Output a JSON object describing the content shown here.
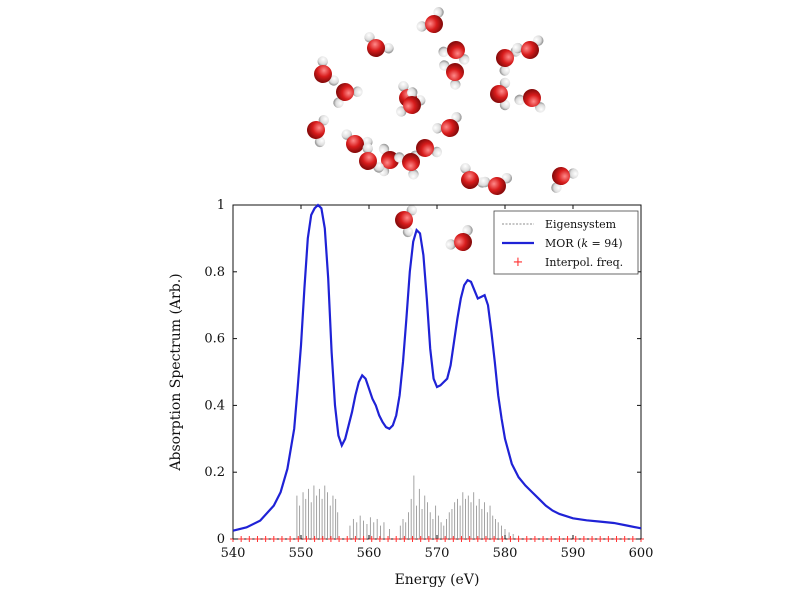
{
  "chart_data": {
    "type": "line",
    "title": "",
    "xlabel": "Energy (eV)",
    "ylabel": "Absorption Spectrum (Arb.)",
    "xlim": [
      540,
      600
    ],
    "ylim": [
      0,
      1
    ],
    "xticks": [
      "540",
      "550",
      "560",
      "570",
      "580",
      "590",
      "600"
    ],
    "yticks": [
      "0",
      "0.2",
      "0.4",
      "0.6",
      "0.8",
      "1"
    ],
    "grid": false,
    "legend_position": "top-right",
    "legend": {
      "eigensystem": "Eigensystem",
      "mor_prefix": "MOR (",
      "mor_k": "k",
      "mor_suffix": " = 94)",
      "interpol": "Interpol. freq."
    },
    "colors": {
      "mor": "#1f22d6",
      "eigensystem": "#8c8c8c",
      "interpol": "#ff3030",
      "oxygen": "#d81c1c",
      "hydrogen": "#e6e6e6"
    },
    "series": [
      {
        "name": "MOR (k = 94)",
        "style": "line",
        "x": [
          540,
          542,
          544,
          546,
          547,
          548,
          549,
          549.5,
          550,
          550.5,
          551,
          551.5,
          552,
          552.5,
          553,
          553.5,
          554,
          554.5,
          555,
          555.5,
          556,
          556.5,
          557,
          557.5,
          558,
          558.5,
          559,
          559.5,
          560,
          560.5,
          561,
          561.5,
          562,
          562.5,
          563,
          563.5,
          564,
          564.5,
          565,
          565.5,
          566,
          566.5,
          567,
          567.5,
          568,
          568.5,
          569,
          569.5,
          570,
          570.5,
          571,
          571.5,
          572,
          572.5,
          573,
          573.5,
          574,
          574.5,
          575,
          575.5,
          576,
          576.5,
          577,
          577.5,
          578,
          578.5,
          579,
          579.5,
          580,
          581,
          582,
          583,
          584,
          585,
          586,
          587,
          588,
          590,
          592,
          594,
          596,
          598,
          600
        ],
        "values": [
          0.025,
          0.035,
          0.055,
          0.1,
          0.14,
          0.21,
          0.33,
          0.45,
          0.58,
          0.75,
          0.9,
          0.97,
          0.99,
          1.0,
          0.99,
          0.93,
          0.78,
          0.56,
          0.4,
          0.31,
          0.28,
          0.3,
          0.34,
          0.38,
          0.43,
          0.47,
          0.49,
          0.48,
          0.45,
          0.42,
          0.4,
          0.37,
          0.35,
          0.335,
          0.33,
          0.34,
          0.37,
          0.43,
          0.53,
          0.66,
          0.8,
          0.89,
          0.925,
          0.915,
          0.85,
          0.72,
          0.57,
          0.48,
          0.455,
          0.46,
          0.47,
          0.48,
          0.52,
          0.59,
          0.66,
          0.72,
          0.76,
          0.775,
          0.77,
          0.745,
          0.72,
          0.725,
          0.73,
          0.7,
          0.62,
          0.53,
          0.43,
          0.36,
          0.3,
          0.225,
          0.185,
          0.16,
          0.14,
          0.12,
          0.1,
          0.085,
          0.075,
          0.062,
          0.056,
          0.052,
          0.048,
          0.04,
          0.032
        ]
      }
    ],
    "eigensystem_sticks": {
      "name": "Eigensystem",
      "x": [
        549.4,
        549.8,
        550.3,
        550.7,
        551.1,
        551.5,
        551.9,
        552.3,
        552.7,
        553.1,
        553.5,
        553.9,
        554.3,
        554.7,
        555.1,
        555.4,
        557.2,
        557.7,
        558.2,
        558.7,
        559.2,
        559.7,
        560.2,
        560.7,
        561.2,
        561.7,
        562.2,
        563.0,
        564.6,
        565.0,
        565.4,
        565.8,
        566.2,
        566.6,
        567.0,
        567.4,
        567.8,
        568.2,
        568.6,
        569.0,
        569.4,
        569.8,
        570.2,
        570.6,
        571.0,
        571.4,
        571.8,
        572.2,
        572.6,
        573.0,
        573.4,
        573.8,
        574.2,
        574.6,
        575.0,
        575.4,
        575.8,
        576.2,
        576.6,
        577.0,
        577.4,
        577.8,
        578.2,
        578.6,
        579.0,
        579.5,
        580.0,
        580.6,
        581.2,
        582.0
      ],
      "values": [
        0.13,
        0.1,
        0.14,
        0.12,
        0.15,
        0.11,
        0.16,
        0.13,
        0.15,
        0.12,
        0.16,
        0.14,
        0.1,
        0.13,
        0.12,
        0.08,
        0.04,
        0.06,
        0.05,
        0.07,
        0.055,
        0.045,
        0.065,
        0.05,
        0.06,
        0.04,
        0.05,
        0.03,
        0.04,
        0.06,
        0.05,
        0.08,
        0.12,
        0.19,
        0.1,
        0.15,
        0.09,
        0.13,
        0.11,
        0.08,
        0.06,
        0.1,
        0.07,
        0.05,
        0.04,
        0.06,
        0.08,
        0.09,
        0.11,
        0.12,
        0.1,
        0.14,
        0.12,
        0.13,
        0.11,
        0.14,
        0.1,
        0.12,
        0.09,
        0.11,
        0.08,
        0.1,
        0.07,
        0.06,
        0.05,
        0.04,
        0.03,
        0.02,
        0.015,
        0.01
      ]
    },
    "interpol_points": {
      "name": "Interpol. freq.",
      "x": [
        540,
        541.2,
        542.4,
        543.6,
        544.8,
        546,
        547.2,
        548.4,
        549.6,
        550.8,
        552,
        553.2,
        554.4,
        555.6,
        556.8,
        558,
        559.2,
        560.4,
        561.6,
        562.8,
        564,
        565.2,
        566.4,
        567.6,
        568.8,
        570,
        571.2,
        572.4,
        573.6,
        574.8,
        576,
        577.2,
        578.4,
        579.6,
        580.8,
        582,
        583.2,
        584.4,
        585.6,
        586.8,
        588,
        589.2,
        590.4,
        591.6,
        592.8,
        594,
        595.2,
        596.4,
        597.6,
        598.8,
        600
      ],
      "values": [
        0,
        0,
        0,
        0,
        0,
        0,
        0,
        0,
        0,
        0,
        0,
        0,
        0,
        0,
        0,
        0,
        0,
        0,
        0,
        0,
        0,
        0,
        0,
        0,
        0,
        0,
        0,
        0,
        0,
        0,
        0,
        0,
        0,
        0,
        0,
        0,
        0,
        0,
        0,
        0,
        0,
        0,
        0,
        0,
        0,
        0,
        0,
        0,
        0,
        0,
        0
      ]
    }
  }
}
